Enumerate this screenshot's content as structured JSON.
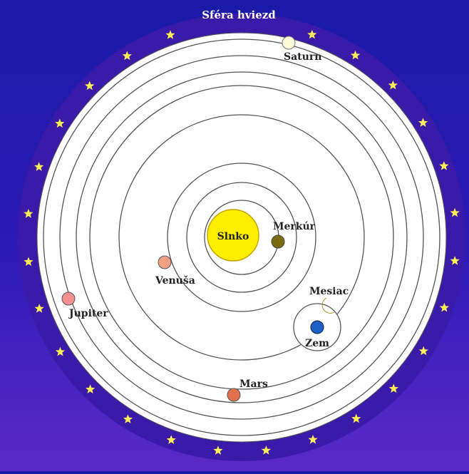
{
  "diagram": {
    "star_sphere_label": "Sféra hviezd",
    "sun_label": "Slnko",
    "colors": {
      "background": "#2020b0",
      "star_band": "#3a1aa8",
      "star": "#ffee55",
      "sun": "#ffee00",
      "sun_stroke": "#c8a400",
      "orbit": "#555555",
      "label": "#222222",
      "merkur": "#7a6a10",
      "venusa": "#f0a080",
      "zem": "#1d5fc8",
      "mesiac": "#f3e45a",
      "mars": "#e0704e",
      "jupiter": "#f29090",
      "saturn": "#fbfbd8"
    },
    "bodies": [
      {
        "id": "merkur",
        "label": "Merkúr",
        "icon": "planet"
      },
      {
        "id": "venusa",
        "label": "Venuša",
        "icon": "planet"
      },
      {
        "id": "zem",
        "label": "Zem",
        "icon": "planet"
      },
      {
        "id": "mesiac",
        "label": "Mesiac",
        "icon": "crescent-moon"
      },
      {
        "id": "mars",
        "label": "Mars",
        "icon": "planet"
      },
      {
        "id": "jupiter",
        "label": "Jupiter",
        "icon": "planet"
      },
      {
        "id": "saturn",
        "label": "Saturn",
        "icon": "planet"
      }
    ]
  }
}
